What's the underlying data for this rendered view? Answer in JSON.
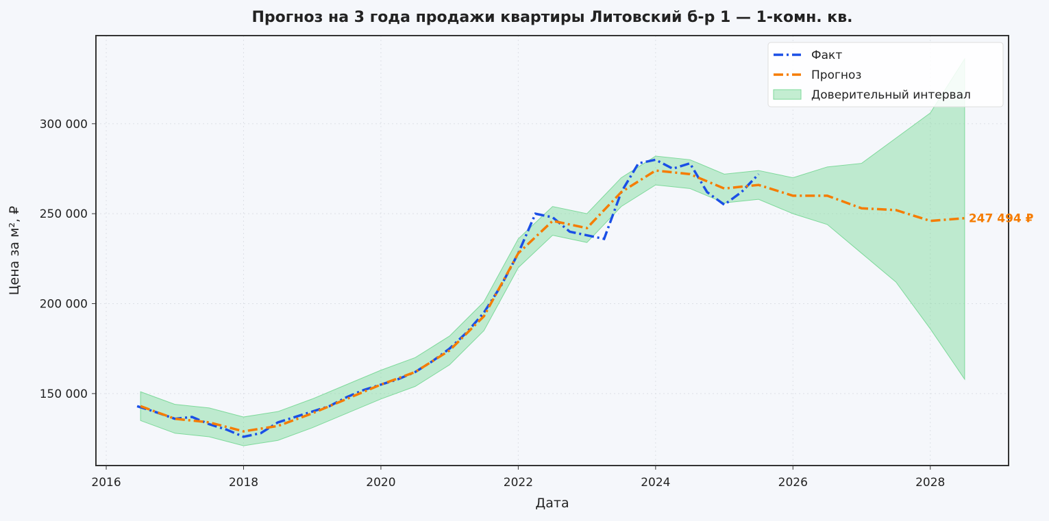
{
  "chart_data": {
    "type": "line",
    "title": "Прогноз на 3 года продажи квартиры  Литовский б-р 1 — 1-комн. кв.",
    "xlabel": "Дата",
    "ylabel": "Цена за м², ₽",
    "xlim": [
      2015.85,
      2029.14
    ],
    "xticks": [
      2016,
      2018,
      2020,
      2022,
      2024,
      2026,
      2028
    ],
    "ylim": [
      110000,
      349000
    ],
    "yticks": [
      {
        "value": 150000,
        "label": "150 000"
      },
      {
        "value": 200000,
        "label": "200 000"
      },
      {
        "value": 250000,
        "label": "250 000"
      },
      {
        "value": 300000,
        "label": "300 000"
      }
    ],
    "grid": true,
    "legend": "upper right",
    "series": [
      {
        "name": "Факт",
        "color": "#1a4fe6",
        "x": [
          2016.45,
          2016.7,
          2017.0,
          2017.25,
          2017.5,
          2017.75,
          2018.0,
          2018.25,
          2018.5,
          2018.75,
          2019.0,
          2019.25,
          2019.5,
          2019.75,
          2020.0,
          2020.25,
          2020.5,
          2020.75,
          2021.0,
          2021.25,
          2021.5,
          2021.75,
          2022.0,
          2022.25,
          2022.5,
          2022.75,
          2023.0,
          2023.25,
          2023.5,
          2023.75,
          2024.0,
          2024.25,
          2024.5,
          2024.75,
          2025.0,
          2025.25,
          2025.5
        ],
        "values": [
          143000,
          140000,
          136000,
          137000,
          133000,
          130000,
          126000,
          128000,
          134000,
          137000,
          140000,
          143000,
          148000,
          152000,
          155000,
          158000,
          162000,
          168000,
          175000,
          184000,
          195000,
          210000,
          228000,
          250000,
          248000,
          240000,
          238000,
          236000,
          262000,
          278000,
          280000,
          275000,
          278000,
          262000,
          255000,
          262000,
          272000
        ]
      },
      {
        "name": "Прогноз",
        "color": "#f57c00",
        "x": [
          2016.5,
          2017.0,
          2017.5,
          2018.0,
          2018.5,
          2019.0,
          2019.5,
          2020.0,
          2020.5,
          2021.0,
          2021.5,
          2022.0,
          2022.5,
          2023.0,
          2023.5,
          2024.0,
          2024.5,
          2025.0,
          2025.5,
          2026.0,
          2026.5,
          2027.0,
          2027.5,
          2028.0,
          2028.5
        ],
        "values": [
          143000,
          136000,
          134000,
          129000,
          132000,
          139000,
          147000,
          155000,
          162000,
          174000,
          193000,
          228000,
          246000,
          242000,
          262000,
          274000,
          272000,
          264000,
          266000,
          260000,
          260000,
          253000,
          252000,
          246000,
          247494
        ]
      },
      {
        "name": "Доверительный интервал",
        "color": "#7dd99a",
        "x": [
          2016.5,
          2017.0,
          2017.5,
          2018.0,
          2018.5,
          2019.0,
          2019.5,
          2020.0,
          2020.5,
          2021.0,
          2021.5,
          2022.0,
          2022.5,
          2023.0,
          2023.5,
          2024.0,
          2024.5,
          2025.0,
          2025.5,
          2026.0,
          2026.5,
          2027.0,
          2027.5,
          2028.0,
          2028.5
        ],
        "lower": [
          135000,
          128000,
          126000,
          121000,
          124000,
          131000,
          139000,
          147000,
          154000,
          166000,
          185000,
          220000,
          238000,
          234000,
          254000,
          266000,
          264000,
          256000,
          258000,
          250000,
          244000,
          228000,
          212000,
          186000,
          158000
        ],
        "upper": [
          151000,
          144000,
          142000,
          137000,
          140000,
          147000,
          155000,
          163000,
          170000,
          182000,
          201000,
          236000,
          254000,
          250000,
          270000,
          282000,
          280000,
          272000,
          274000,
          270000,
          276000,
          278000,
          292000,
          306000,
          336000
        ]
      }
    ],
    "annotation": {
      "text": "247 494 ₽"
    }
  }
}
